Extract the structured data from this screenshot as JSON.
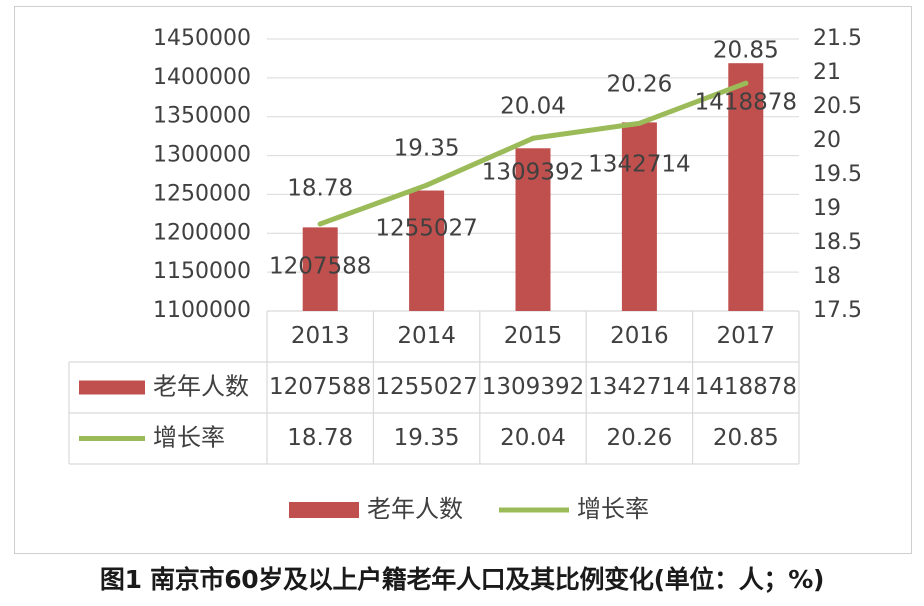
{
  "chart_data": {
    "type": "bar",
    "categories": [
      "2013",
      "2014",
      "2015",
      "2016",
      "2017"
    ],
    "series": [
      {
        "name": "老年人数",
        "type": "bar",
        "axis": "left",
        "values": [
          1207588,
          1255027,
          1309392,
          1342714,
          1418878
        ],
        "labels": [
          "1207588",
          "1255027",
          "1309392",
          "1342714",
          "1418878"
        ]
      },
      {
        "name": "增长率",
        "type": "line",
        "axis": "right",
        "values": [
          18.78,
          19.35,
          20.04,
          20.26,
          20.85
        ],
        "labels": [
          "18.78",
          "19.35",
          "20.04",
          "20.26",
          "20.85"
        ]
      }
    ],
    "ylim_left": [
      1100000,
      1450000
    ],
    "yticks_left": [
      "1100000",
      "1150000",
      "1200000",
      "1250000",
      "1300000",
      "1350000",
      "1400000",
      "1450000"
    ],
    "ylim_right": [
      17.5,
      21.5
    ],
    "yticks_right": [
      "17.5",
      "18",
      "18.5",
      "19",
      "19.5",
      "20",
      "20.5",
      "21",
      "21.5"
    ],
    "grid": true,
    "data_table": true,
    "legend_position": "bottom",
    "colors": {
      "bar": "#c0504d",
      "line": "#9bbb59",
      "grid": "#d9d9d9",
      "text": "#404040"
    }
  },
  "caption": "图1  南京市60岁及以上户籍老年人口及其比例变化(单位：人；%)"
}
